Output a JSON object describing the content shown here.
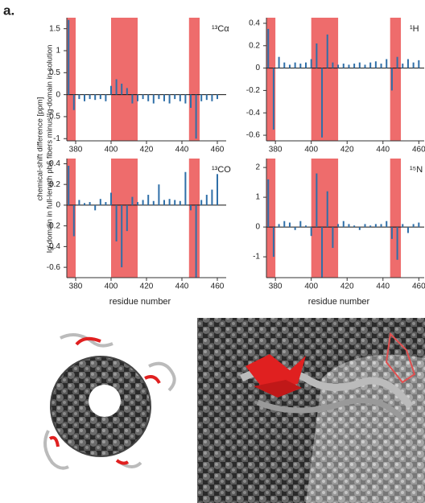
{
  "panel_label": "a.",
  "y_axis_label_lines": [
    "chemical-shift difference [ppm]",
    "Ig-domain in full-length pb6 fibers minus Ig-domain in solution"
  ],
  "chart_data": [
    {
      "type": "bar",
      "title": "¹³Cα",
      "color": "#2f6fa8",
      "band_color": "#ee6c6c",
      "x": [
        376,
        379,
        382,
        385,
        388,
        391,
        394,
        397,
        400,
        403,
        406,
        409,
        412,
        415,
        418,
        421,
        424,
        427,
        430,
        433,
        436,
        439,
        442,
        445,
        448,
        451,
        454,
        457,
        460
      ],
      "values": [
        1.7,
        -0.35,
        -0.1,
        -0.15,
        -0.1,
        -0.12,
        -0.1,
        -0.15,
        0.2,
        0.35,
        0.25,
        0.15,
        -0.2,
        -0.15,
        -0.1,
        -0.15,
        -0.2,
        -0.1,
        -0.15,
        -0.2,
        -0.1,
        -0.15,
        -0.2,
        -0.3,
        -1.0,
        -0.15,
        -0.12,
        -0.15,
        -0.1
      ],
      "shaded_ranges": [
        [
          375,
          380
        ],
        [
          400,
          415
        ],
        [
          444,
          450
        ]
      ],
      "xlim": [
        375,
        465
      ],
      "xticks": [
        380,
        400,
        420,
        440,
        460
      ],
      "ylim": [
        -1.05,
        1.75
      ],
      "yticks": [
        1.5,
        1,
        0.5,
        0,
        -0.5,
        -1
      ]
    },
    {
      "type": "bar",
      "title": "¹H",
      "color": "#2f6fa8",
      "band_color": "#ee6c6c",
      "x": [
        376,
        379,
        382,
        385,
        388,
        391,
        394,
        397,
        400,
        403,
        406,
        409,
        412,
        415,
        418,
        421,
        424,
        427,
        430,
        433,
        436,
        439,
        442,
        445,
        448,
        451,
        454,
        457,
        460
      ],
      "values": [
        0.35,
        -0.55,
        0.1,
        0.05,
        0.03,
        0.05,
        0.04,
        0.05,
        0.08,
        0.22,
        -0.62,
        0.3,
        0.05,
        0.03,
        0.04,
        0.03,
        0.04,
        0.05,
        0.03,
        0.05,
        0.06,
        0.04,
        0.08,
        -0.2,
        0.1,
        0.04,
        0.08,
        0.05,
        0.07
      ],
      "shaded_ranges": [
        [
          375,
          380
        ],
        [
          400,
          415
        ],
        [
          444,
          450
        ]
      ],
      "xlim": [
        375,
        463
      ],
      "xticks": [
        380,
        400,
        420,
        440,
        460
      ],
      "ylim": [
        -0.65,
        0.45
      ],
      "yticks": [
        0.4,
        0.2,
        0,
        -0.2,
        -0.4,
        -0.6
      ]
    },
    {
      "type": "bar",
      "title": "¹³CO",
      "xlabel": "residue number",
      "color": "#2f6fa8",
      "band_color": "#ee6c6c",
      "x": [
        376,
        379,
        382,
        385,
        388,
        391,
        394,
        397,
        400,
        403,
        406,
        409,
        412,
        415,
        418,
        421,
        424,
        427,
        430,
        433,
        436,
        439,
        442,
        445,
        448,
        451,
        454,
        457,
        460
      ],
      "values": [
        0.38,
        -0.3,
        0.05,
        0.02,
        0.03,
        -0.05,
        0.06,
        0.03,
        0.12,
        -0.35,
        -0.6,
        -0.25,
        0.08,
        0.03,
        0.05,
        0.1,
        0.04,
        0.2,
        0.05,
        0.06,
        0.05,
        0.04,
        0.32,
        -0.05,
        -0.7,
        0.05,
        0.1,
        0.15,
        0.3
      ],
      "shaded_ranges": [
        [
          375,
          380
        ],
        [
          400,
          415
        ],
        [
          444,
          450
        ]
      ],
      "xlim": [
        375,
        465
      ],
      "xticks": [
        380,
        400,
        420,
        440,
        460
      ],
      "ylim": [
        -0.7,
        0.45
      ],
      "yticks": [
        0.4,
        0.2,
        0,
        -0.2,
        -0.4,
        -0.6
      ]
    },
    {
      "type": "bar",
      "title": "¹⁵N",
      "xlabel": "residue number",
      "color": "#2f6fa8",
      "band_color": "#ee6c6c",
      "x": [
        376,
        379,
        382,
        385,
        388,
        391,
        394,
        397,
        400,
        403,
        406,
        409,
        412,
        415,
        418,
        421,
        424,
        427,
        430,
        433,
        436,
        439,
        442,
        445,
        448,
        451,
        454,
        457,
        460
      ],
      "values": [
        1.6,
        -1.0,
        0.1,
        0.2,
        0.15,
        -0.1,
        0.2,
        0.05,
        -0.3,
        1.8,
        -1.7,
        1.2,
        -0.7,
        0.1,
        0.2,
        0.1,
        0.05,
        -0.1,
        0.1,
        0.05,
        0.1,
        0.1,
        0.2,
        -0.4,
        -1.1,
        0.1,
        -0.2,
        0.1,
        0.15
      ],
      "shaded_ranges": [
        [
          375,
          380
        ],
        [
          400,
          415
        ],
        [
          444,
          450
        ]
      ],
      "xlim": [
        375,
        463
      ],
      "xticks": [
        380,
        400,
        420,
        440,
        460
      ],
      "ylim": [
        -1.7,
        2.3
      ],
      "yticks": [
        2,
        1,
        0,
        -1
      ]
    }
  ]
}
